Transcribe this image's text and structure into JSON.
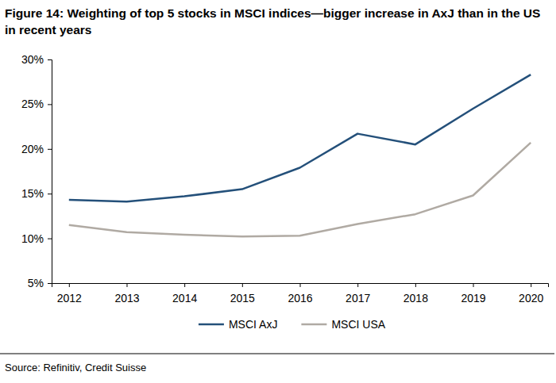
{
  "chart_data": {
    "type": "line",
    "title": "Figure 14: Weighting of top 5 stocks in MSCI indices—bigger increase in AxJ than in the US in recent years",
    "source": "Source: Refinitiv, Credit Suisse",
    "categories": [
      "2012",
      "2013",
      "2014",
      "2015",
      "2016",
      "2017",
      "2018",
      "2019",
      "2020"
    ],
    "series": [
      {
        "name": "MSCI AxJ",
        "color": "#24507a",
        "values": [
          14.3,
          14.1,
          14.7,
          15.5,
          17.9,
          21.7,
          20.5,
          24.5,
          28.3
        ]
      },
      {
        "name": "MSCI USA",
        "color": "#b0aaa3",
        "values": [
          11.5,
          10.7,
          10.4,
          10.2,
          10.3,
          11.6,
          12.7,
          14.8,
          20.7
        ]
      }
    ],
    "ylim": [
      5,
      30
    ],
    "yticks": [
      {
        "value": 5,
        "label": "5%"
      },
      {
        "value": 10,
        "label": "10%"
      },
      {
        "value": 15,
        "label": "15%"
      },
      {
        "value": 20,
        "label": "20%"
      },
      {
        "value": 25,
        "label": "25%"
      },
      {
        "value": 30,
        "label": "30%"
      }
    ],
    "grid": false,
    "legend": "bottom"
  }
}
